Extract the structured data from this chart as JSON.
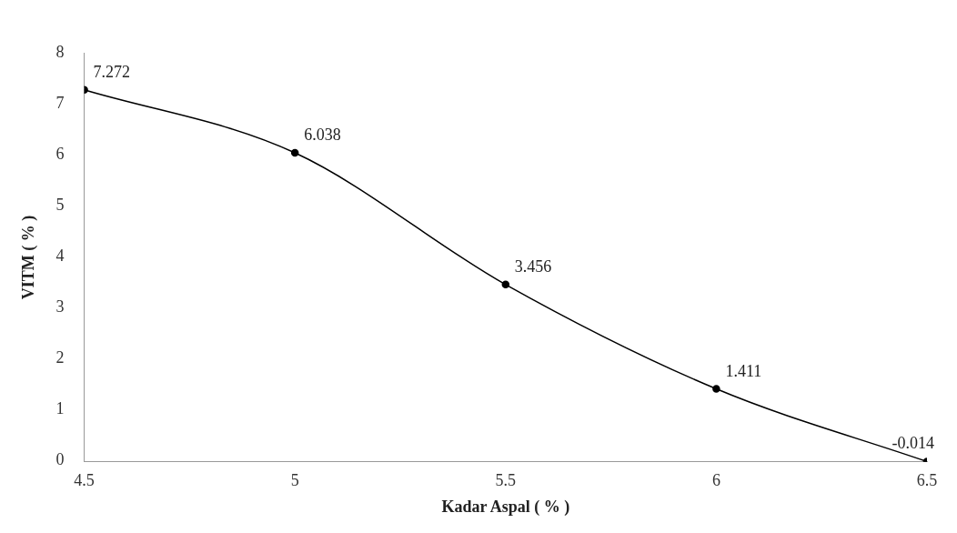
{
  "chart_data": {
    "type": "line",
    "xlabel": "Kadar Aspal ( % )",
    "ylabel": "VITM ( % )",
    "x": [
      4.5,
      5,
      5.5,
      6,
      6.5
    ],
    "series": [
      {
        "color": "#000000",
        "values": [
          7.272,
          6.038,
          3.456,
          1.411,
          -0.014
        ]
      }
    ],
    "xlim": [
      4.5,
      6.5
    ],
    "xticks": [
      4.5,
      5,
      5.5,
      6,
      6.5
    ],
    "ylim": [
      -0.02,
      8
    ],
    "yticks": [
      0,
      1,
      2,
      3,
      4,
      5,
      6,
      7,
      8
    ],
    "marker": "circle",
    "line_style": "solid",
    "data_labels": true,
    "grid": false,
    "legend": false
  }
}
